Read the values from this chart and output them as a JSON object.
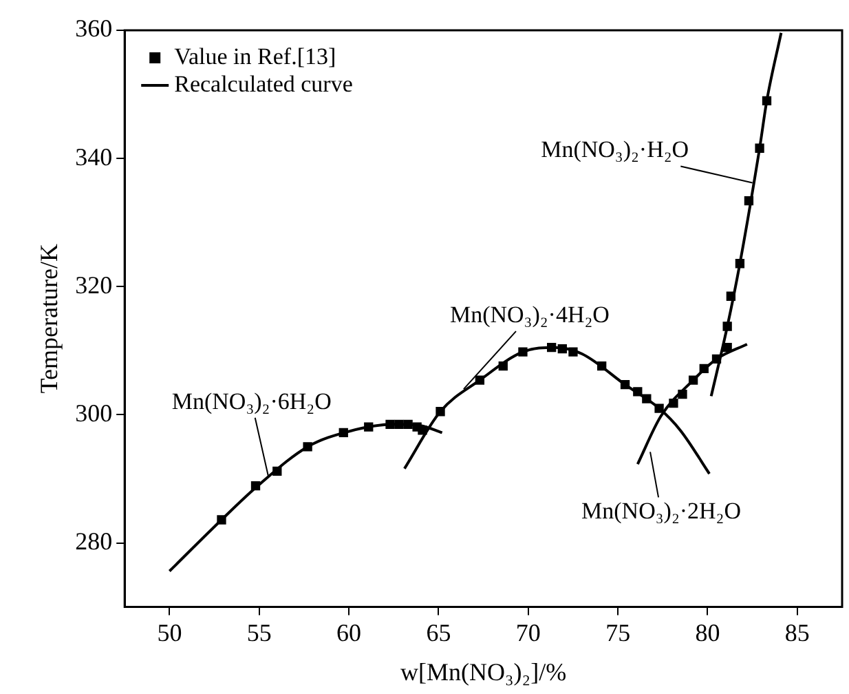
{
  "chart_data": {
    "type": "scatter",
    "xlabel": "w[Mn(NO₃)₂]/%",
    "ylabel": "Temperature/K",
    "xlim": [
      47.5,
      87.5
    ],
    "ylim": [
      270,
      360
    ],
    "xticks": [
      50,
      55,
      60,
      65,
      70,
      75,
      80,
      85
    ],
    "yticks": [
      280,
      300,
      320,
      340,
      360
    ],
    "grid": false,
    "legend": "top left",
    "series": [
      {
        "name": "Value in Ref.[13]",
        "marker": "square",
        "color": "#000000",
        "x": [
          52.9,
          54.8,
          56.0,
          57.7,
          59.7,
          61.1,
          62.3,
          62.8,
          63.3,
          63.8,
          64.1,
          65.1,
          67.3,
          68.6,
          69.7,
          71.3,
          71.9,
          72.5,
          74.1,
          75.4,
          76.1,
          76.6,
          77.3,
          78.1,
          78.6,
          79.2,
          79.8,
          80.5,
          81.1,
          81.1,
          81.3,
          81.8,
          82.3,
          82.9,
          83.3
        ],
        "values": [
          283.6,
          288.9,
          291.2,
          295.0,
          297.2,
          298.1,
          298.5,
          298.5,
          298.5,
          298.1,
          297.6,
          300.5,
          305.4,
          307.6,
          309.8,
          310.5,
          310.3,
          309.8,
          307.6,
          304.7,
          303.6,
          302.5,
          301.0,
          301.8,
          303.2,
          305.4,
          307.2,
          308.7,
          310.5,
          313.8,
          318.5,
          323.6,
          333.4,
          341.6,
          349.0
        ]
      },
      {
        "name": "Recalculated curve",
        "type": "line",
        "marker": "none",
        "color": "#000000",
        "x": [
          50.0,
          52.9,
          55.0,
          57.7,
          60.0,
          62.5,
          64.0,
          65.2
        ],
        "values": [
          275.6,
          283.6,
          289.1,
          295.0,
          297.4,
          298.5,
          298.3,
          297.2
        ]
      },
      {
        "type": "line",
        "marker": "none",
        "color": "#000000",
        "x": [
          63.1,
          65.1,
          67.3,
          69.7,
          71.5,
          73.0,
          75.4,
          77.3,
          78.5,
          80.1
        ],
        "values": [
          291.6,
          300.5,
          305.4,
          309.8,
          310.5,
          309.5,
          304.7,
          301.0,
          297.5,
          290.8
        ]
      },
      {
        "type": "line",
        "marker": "none",
        "color": "#000000",
        "x": [
          76.1,
          77.4,
          79.2,
          80.5,
          82.2
        ],
        "values": [
          292.3,
          299.8,
          305.4,
          308.7,
          311.0
        ]
      },
      {
        "type": "line",
        "marker": "none",
        "color": "#000000",
        "x": [
          80.2,
          81.1,
          81.8,
          82.9,
          83.3,
          84.1
        ],
        "values": [
          302.9,
          313.8,
          323.6,
          341.6,
          349.0,
          359.6
        ]
      }
    ],
    "annotations": [
      {
        "text": "Mn(NO₃)₂·6H₂O",
        "x": 55.5,
        "y": 290.5
      },
      {
        "text": "Mn(NO₃)₂·4H₂O",
        "x": 66.4,
        "y": 304.0
      },
      {
        "text": "Mn(NO₃)₂·H₂O",
        "x": 82.5,
        "y": 336.2
      },
      {
        "text": "Mn(NO₃)₂·2H₂O",
        "x": 76.8,
        "y": 294.2
      }
    ]
  }
}
